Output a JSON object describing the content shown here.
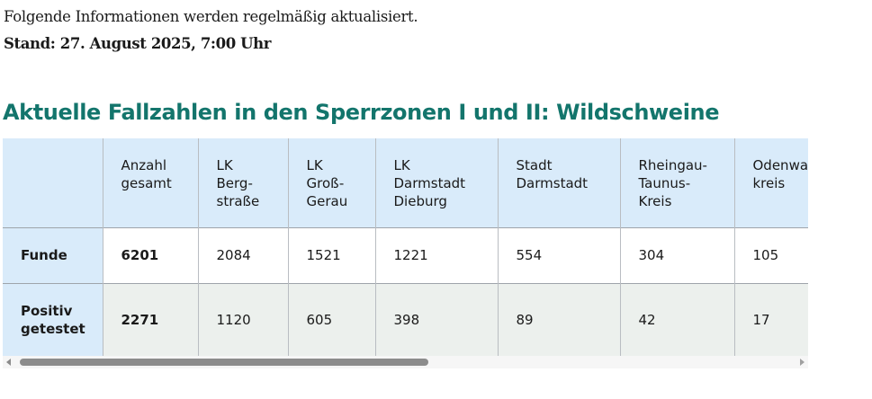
{
  "intro": "Folgende Informationen werden regelmäßig aktualisiert.",
  "stand": "Stand: 27. August 2025, 7:00 Uhr",
  "title": "Aktuelle Fallzahlen in den Sperrzonen I und II: Wildschweine",
  "table": {
    "headers": [
      "",
      [
        "Anzahl",
        "gesamt"
      ],
      [
        "LK",
        "Berg-",
        "straße"
      ],
      [
        "LK",
        "Groß-",
        "Gerau"
      ],
      [
        "LK",
        "Darmstadt",
        "Dieburg"
      ],
      [
        "Stadt",
        "Darmstadt"
      ],
      [
        "Rheingau-",
        "Taunus-",
        "Kreis"
      ],
      [
        "Odenwald-",
        "kreis"
      ]
    ],
    "rows": [
      {
        "label": [
          "Funde"
        ],
        "values": [
          "6201",
          "2084",
          "1521",
          "1221",
          "554",
          "304",
          "105"
        ]
      },
      {
        "label": [
          "Positiv",
          "getestet"
        ],
        "values": [
          "2271",
          "1120",
          "605",
          "398",
          "89",
          "42",
          "17"
        ]
      }
    ]
  },
  "colors": {
    "title": "#13756c",
    "header_bg": "#d9ebfa",
    "row_alt_bg": "#ecf0ed"
  }
}
